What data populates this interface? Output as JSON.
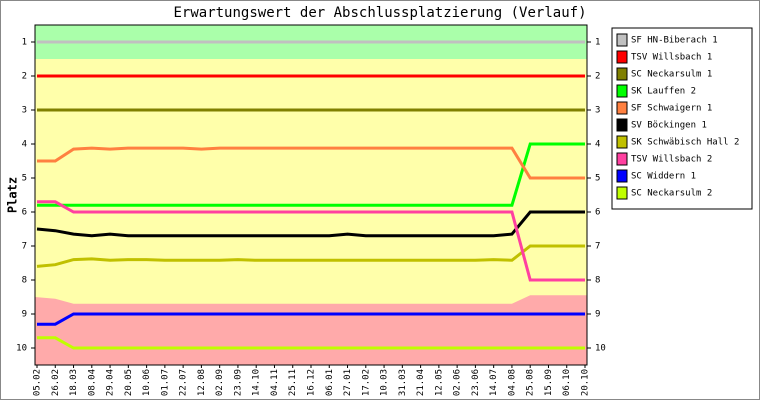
{
  "chart_data": {
    "type": "line",
    "title": "Erwartungswert der Abschlussplatzierung (Verlauf)",
    "y_label": "Platz",
    "categories": [
      "05.02",
      "26.02",
      "18.03",
      "08.04",
      "29.04",
      "20.05",
      "10.06",
      "01.07",
      "22.07",
      "12.08",
      "02.09",
      "23.09",
      "14.10",
      "04.11",
      "25.11",
      "16.12",
      "06.01",
      "27.01",
      "17.02",
      "10.03",
      "31.03",
      "21.04",
      "12.05",
      "02.06",
      "23.06",
      "14.07",
      "04.08",
      "25.08",
      "15.09",
      "06.10",
      "20.10"
    ],
    "ylim": [
      0.5,
      10.5
    ],
    "y_inverted": true,
    "yticks": [
      1,
      2,
      3,
      4,
      5,
      6,
      7,
      8,
      9,
      10
    ],
    "bands": [
      {
        "color": "#aaffaa",
        "from": 0.5,
        "to": 1.5
      },
      {
        "color": "#ffffaa",
        "from": 1.5,
        "to": 10.5
      },
      {
        "color": "#ffaaaa",
        "from": [
          8.5,
          8.55,
          8.7,
          8.7,
          8.7,
          8.7,
          8.7,
          8.7,
          8.7,
          8.7,
          8.7,
          8.7,
          8.7,
          8.7,
          8.7,
          8.7,
          8.7,
          8.7,
          8.7,
          8.7,
          8.7,
          8.7,
          8.7,
          8.7,
          8.7,
          8.7,
          8.7,
          8.45,
          8.45,
          8.45,
          8.45
        ],
        "to": 10.5
      }
    ],
    "series": [
      {
        "name": "SF HN-Biberach 1",
        "color": "#c0c0c0",
        "values": [
          1,
          1,
          1,
          1,
          1,
          1,
          1,
          1,
          1,
          1,
          1,
          1,
          1,
          1,
          1,
          1,
          1,
          1,
          1,
          1,
          1,
          1,
          1,
          1,
          1,
          1,
          1,
          1,
          1,
          1,
          1
        ]
      },
      {
        "name": "TSV Willsbach 1",
        "color": "#ff0000",
        "values": [
          2,
          2,
          2,
          2,
          2,
          2,
          2,
          2,
          2,
          2,
          2,
          2,
          2,
          2,
          2,
          2,
          2,
          2,
          2,
          2,
          2,
          2,
          2,
          2,
          2,
          2,
          2,
          2,
          2,
          2,
          2
        ]
      },
      {
        "name": "SC Neckarsulm 1",
        "color": "#808000",
        "values": [
          3,
          3,
          3,
          3,
          3,
          3,
          3,
          3,
          3,
          3,
          3,
          3,
          3,
          3,
          3,
          3,
          3,
          3,
          3,
          3,
          3,
          3,
          3,
          3,
          3,
          3,
          3,
          3,
          3,
          3,
          3
        ]
      },
      {
        "name": "SK Lauffen 2",
        "color": "#00ff00",
        "values": [
          5.8,
          5.8,
          5.8,
          5.8,
          5.8,
          5.8,
          5.8,
          5.8,
          5.8,
          5.8,
          5.8,
          5.8,
          5.8,
          5.8,
          5.8,
          5.8,
          5.8,
          5.8,
          5.8,
          5.8,
          5.8,
          5.8,
          5.8,
          5.8,
          5.8,
          5.8,
          5.8,
          4,
          4,
          4,
          4
        ]
      },
      {
        "name": "SF Schwaigern 1",
        "color": "#ff8040",
        "values": [
          4.5,
          4.5,
          4.15,
          4.12,
          4.15,
          4.12,
          4.12,
          4.12,
          4.12,
          4.15,
          4.12,
          4.12,
          4.12,
          4.12,
          4.12,
          4.12,
          4.12,
          4.12,
          4.12,
          4.12,
          4.12,
          4.12,
          4.12,
          4.12,
          4.12,
          4.12,
          4.12,
          5,
          5,
          5,
          5
        ]
      },
      {
        "name": "SV Böckingen 1",
        "color": "#000000",
        "values": [
          6.5,
          6.55,
          6.65,
          6.7,
          6.65,
          6.7,
          6.7,
          6.7,
          6.7,
          6.7,
          6.7,
          6.7,
          6.7,
          6.7,
          6.7,
          6.7,
          6.7,
          6.65,
          6.7,
          6.7,
          6.7,
          6.7,
          6.7,
          6.7,
          6.7,
          6.7,
          6.65,
          6,
          6,
          6,
          6
        ]
      },
      {
        "name": "SK Schwäbisch Hall 2",
        "color": "#c0c000",
        "values": [
          7.6,
          7.55,
          7.4,
          7.38,
          7.42,
          7.4,
          7.4,
          7.42,
          7.42,
          7.42,
          7.42,
          7.4,
          7.42,
          7.42,
          7.42,
          7.42,
          7.42,
          7.42,
          7.42,
          7.42,
          7.42,
          7.42,
          7.42,
          7.42,
          7.42,
          7.4,
          7.42,
          7,
          7,
          7,
          7
        ]
      },
      {
        "name": "TSV Willsbach 2",
        "color": "#ff40a0",
        "values": [
          5.7,
          5.7,
          6,
          6,
          6,
          6,
          6,
          6,
          6,
          6,
          6,
          6,
          6,
          6,
          6,
          6,
          6,
          6,
          6,
          6,
          6,
          6,
          6,
          6,
          6,
          6,
          6,
          8,
          8,
          8,
          8
        ]
      },
      {
        "name": "SC Widdern 1",
        "color": "#0000ff",
        "values": [
          9.3,
          9.3,
          9,
          9,
          9,
          9,
          9,
          9,
          9,
          9,
          9,
          9,
          9,
          9,
          9,
          9,
          9,
          9,
          9,
          9,
          9,
          9,
          9,
          9,
          9,
          9,
          9,
          9,
          9,
          9,
          9
        ]
      },
      {
        "name": "SC Neckarsulm 2",
        "color": "#c0ff00",
        "values": [
          9.7,
          9.7,
          10,
          10,
          10,
          10,
          10,
          10,
          10,
          10,
          10,
          10,
          10,
          10,
          10,
          10,
          10,
          10,
          10,
          10,
          10,
          10,
          10,
          10,
          10,
          10,
          10,
          10,
          10,
          10,
          10
        ]
      }
    ]
  }
}
